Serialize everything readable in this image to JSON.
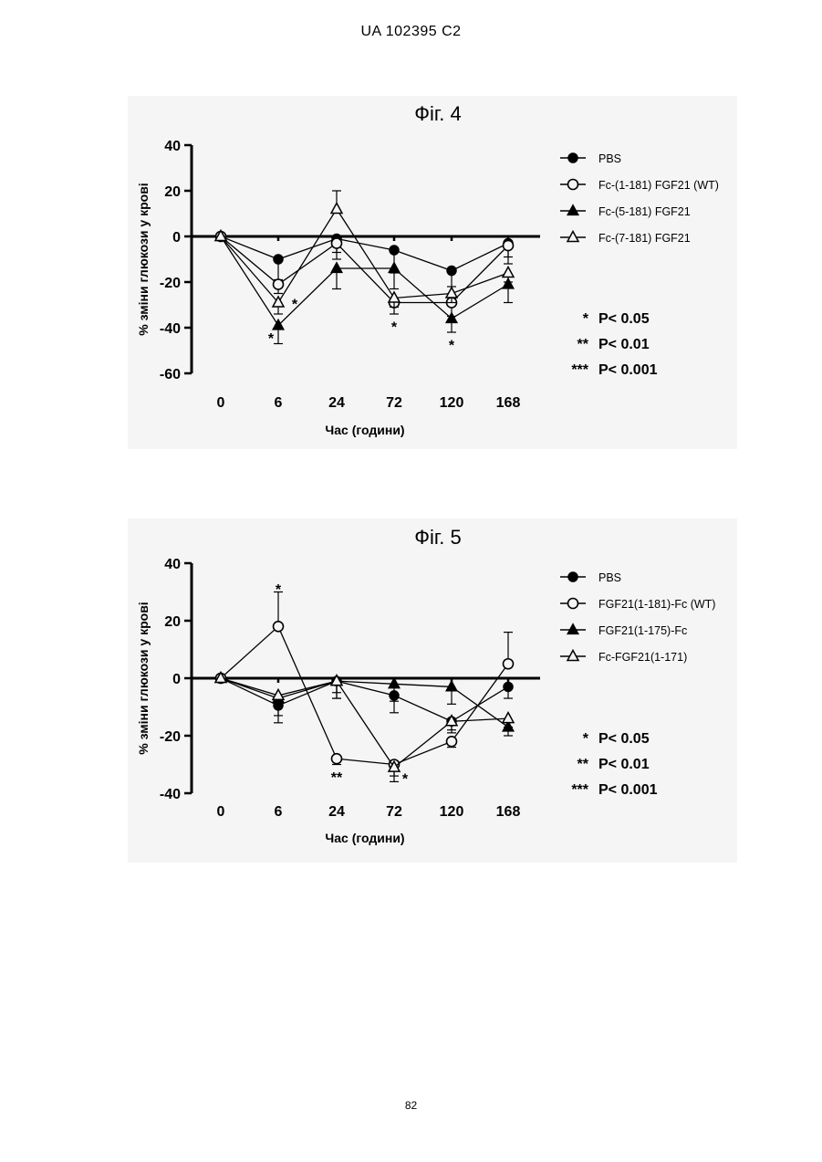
{
  "header": {
    "patent_no": "UA   102395   C2"
  },
  "footer": {
    "page_number": "82"
  },
  "chart_data": [
    {
      "type": "line",
      "title": "Фіг. 4",
      "xlabel": "Час (години)",
      "ylabel": "% зміни глюкози у крові",
      "categories": [
        "0",
        "6",
        "24",
        "72",
        "120",
        "168"
      ],
      "ylim": [
        -60,
        40
      ],
      "yticks": [
        "40",
        "20",
        "0",
        "-20",
        "-40",
        "-60"
      ],
      "error_bars": true,
      "series": [
        {
          "name": "PBS",
          "marker": "filled-circle",
          "values": [
            0,
            -10,
            -1,
            -6,
            -15,
            -3
          ],
          "errors": [
            0,
            9,
            6,
            10,
            7,
            9
          ]
        },
        {
          "name": "Fc-(1-181) FGF21 (WT)",
          "marker": "open-circle",
          "values": [
            0,
            -21,
            -3,
            -29,
            -29,
            -4
          ],
          "errors": [
            0,
            4,
            7,
            5,
            6,
            5
          ]
        },
        {
          "name": "Fc-(5-181) FGF21",
          "marker": "filled-triangle",
          "values": [
            0,
            -39,
            -14,
            -14,
            -36,
            -21
          ],
          "errors": [
            0,
            8,
            9,
            9,
            6,
            8
          ]
        },
        {
          "name": "Fc-(7-181) FGF21",
          "marker": "open-triangle",
          "values": [
            0,
            -29,
            12,
            -27,
            -25,
            -16
          ],
          "errors": [
            0,
            5,
            8,
            4,
            4,
            4
          ]
        }
      ],
      "annotations": [
        {
          "label": "*",
          "x": "6",
          "y": -44
        },
        {
          "label": "*",
          "x": "6",
          "y": -29
        },
        {
          "label": "*",
          "x": "72",
          "y": -39
        },
        {
          "label": "*",
          "x": "120",
          "y": -47
        }
      ],
      "significance": [
        {
          "stars": "*",
          "label": "P< 0.05"
        },
        {
          "stars": "**",
          "label": "P< 0.01"
        },
        {
          "stars": "***",
          "label": "P< 0.001"
        }
      ]
    },
    {
      "type": "line",
      "title": "Фіг. 5",
      "xlabel": "Час (години)",
      "ylabel": "% зміни глюкози у крові",
      "categories": [
        "0",
        "6",
        "24",
        "72",
        "120",
        "168"
      ],
      "ylim": [
        -40,
        40
      ],
      "yticks": [
        "40",
        "20",
        "0",
        "-20",
        "-40"
      ],
      "error_bars": true,
      "series": [
        {
          "name": "PBS",
          "marker": "filled-circle",
          "values": [
            0,
            -9.5,
            -1,
            -6,
            -15,
            -3
          ],
          "errors": [
            0,
            6,
            6,
            6,
            4,
            4
          ]
        },
        {
          "name": "FGF21(1-181)-Fc (WT)",
          "marker": "open-circle",
          "values": [
            0,
            18,
            -28,
            -30,
            -22,
            5
          ],
          "errors": [
            0,
            12,
            2,
            6,
            2,
            11
          ]
        },
        {
          "name": "FGF21(1-175)-Fc",
          "marker": "filled-triangle",
          "values": [
            0,
            -7,
            -1,
            -2,
            -3,
            -17
          ],
          "errors": [
            0,
            6,
            6,
            6,
            6,
            3
          ]
        },
        {
          "name": "Fc-FGF21(1-171)",
          "marker": "open-triangle",
          "values": [
            0,
            -6,
            -1,
            -31,
            -15,
            -14
          ],
          "errors": [
            0,
            4,
            4,
            3,
            3,
            3
          ]
        }
      ],
      "annotations": [
        {
          "label": "*",
          "x": "6",
          "y": 31.5
        },
        {
          "label": "**",
          "x": "24",
          "y": -34
        },
        {
          "label": "*",
          "x": "72",
          "y": -34.5
        }
      ],
      "significance": [
        {
          "stars": "*",
          "label": "P< 0.05"
        },
        {
          "stars": "**",
          "label": "P< 0.01"
        },
        {
          "stars": "***",
          "label": "P< 0.001"
        }
      ]
    }
  ]
}
